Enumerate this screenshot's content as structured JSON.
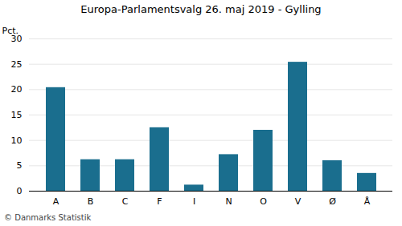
{
  "chart_data": {
    "type": "bar",
    "title": "Europa-Parlamentsvalg 26. maj 2019 - Gylling",
    "ylabel": "Pct.",
    "caption": "© Danmarks Statistik",
    "categories": [
      "A",
      "B",
      "C",
      "F",
      "I",
      "N",
      "O",
      "V",
      "Ø",
      "Å"
    ],
    "values": [
      20.4,
      6.2,
      6.2,
      12.5,
      1.2,
      7.2,
      12.0,
      25.4,
      6.0,
      3.5
    ],
    "color": "#1a6e8e",
    "ylim": [
      0,
      30
    ],
    "yticks": [
      0,
      5,
      10,
      15,
      20,
      25,
      30
    ],
    "grid": true
  }
}
